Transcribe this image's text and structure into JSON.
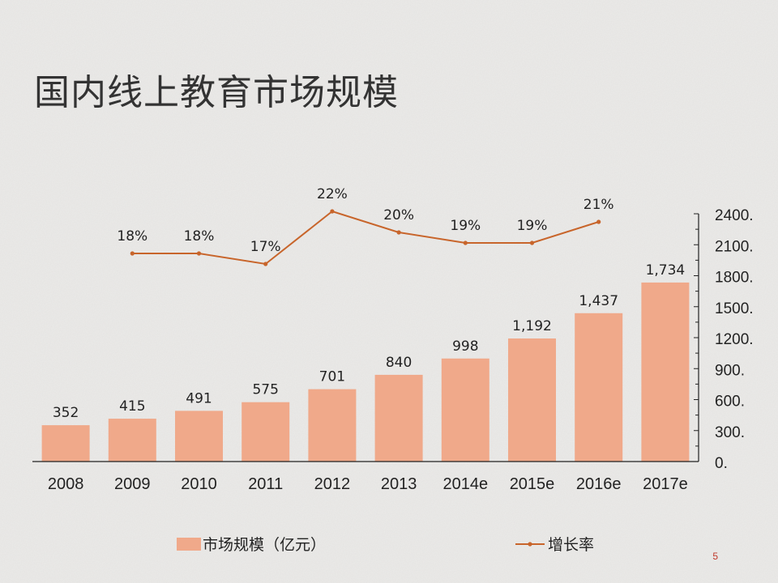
{
  "slide": {
    "title": "国内线上教育市场规模",
    "page_number": "5"
  },
  "colors": {
    "bar": "#f0a98a",
    "line": "#c8652b",
    "axis": "#222222",
    "text": "#222222"
  },
  "chart_data": {
    "type": "bar",
    "title": "",
    "categories": [
      "2008",
      "2009",
      "2010",
      "2011",
      "2012",
      "2013",
      "2014e",
      "2015e",
      "2016e",
      "2017e"
    ],
    "series": [
      {
        "name": "市场规模（亿元）",
        "type": "bar",
        "axis": "right",
        "values": [
          352,
          415,
          491,
          575,
          701,
          840,
          998,
          1192,
          1437,
          1734
        ],
        "labels": [
          "352",
          "415",
          "491",
          "575",
          "701",
          "840",
          "998",
          "1,192",
          "1,437",
          "1,734"
        ]
      },
      {
        "name": "增长率",
        "type": "line",
        "axis": "secondary",
        "values": [
          null,
          18,
          18,
          17,
          22,
          20,
          19,
          19,
          21,
          null
        ],
        "labels": [
          "",
          "18%",
          "18%",
          "17%",
          "22%",
          "20%",
          "19%",
          "19%",
          "21%",
          ""
        ]
      }
    ],
    "y_axis": {
      "position": "right",
      "ylim": [
        0,
        2400
      ],
      "ticks": [
        0,
        300,
        600,
        900,
        1200,
        1500,
        1800,
        2100,
        2400
      ],
      "tick_labels": [
        "0.",
        "300.",
        "600.",
        "900.",
        "1200.",
        "1500.",
        "1800.",
        "2100.",
        "2400."
      ]
    },
    "legend": {
      "placement": "bottom"
    },
    "grid": false
  }
}
